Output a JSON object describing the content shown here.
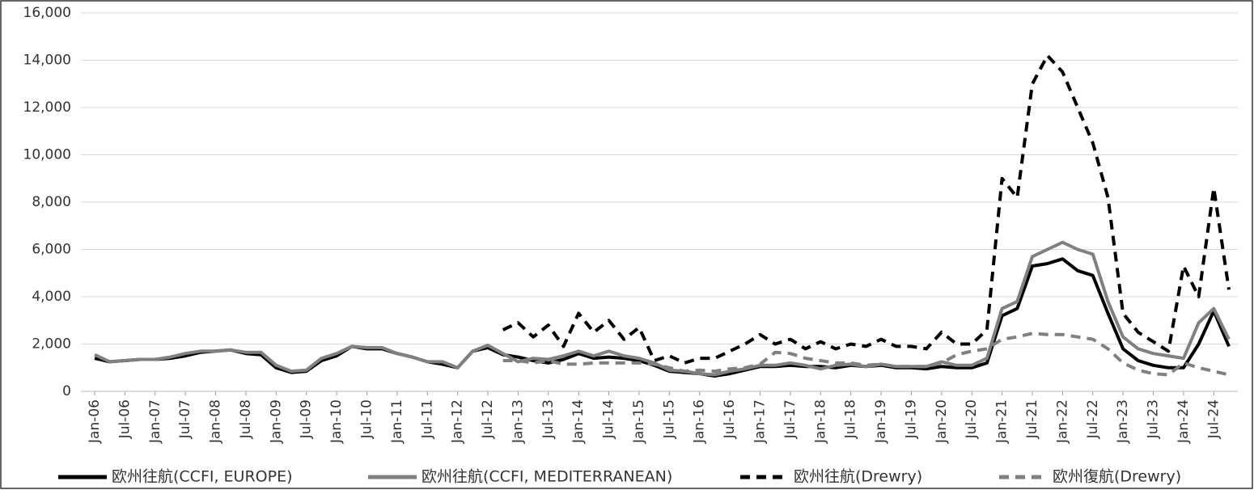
{
  "chart_data": {
    "type": "line",
    "categories": [
      "Jan-06",
      null,
      "Jul-06",
      null,
      "Jan-07",
      null,
      "Jul-07",
      null,
      "Jan-08",
      null,
      "Jul-08",
      null,
      "Jan-09",
      null,
      "Jul-09",
      null,
      "Jan-10",
      null,
      "Jul-10",
      null,
      "Jan-11",
      null,
      "Jul-11",
      null,
      "Jan-12",
      null,
      "Jul-12",
      null,
      "Jan-13",
      null,
      "Jul-13",
      null,
      "Jan-14",
      null,
      "Jul-14",
      null,
      "Jan-15",
      null,
      "Jul-15",
      null,
      "Jan-16",
      null,
      "Jul-16",
      null,
      "Jan-17",
      null,
      "Jul-17",
      null,
      "Jan-18",
      null,
      "Jul-18",
      null,
      "Jan-19",
      null,
      "Jul-19",
      null,
      "Jan-20",
      null,
      "Jul-20",
      null,
      "Jan-21",
      null,
      "Jul-21",
      null,
      "Jan-22",
      null,
      "Jul-22",
      null,
      "Jan-23",
      null,
      "Jul-23",
      null,
      "Jan-24",
      null,
      "Jul-24",
      null
    ],
    "series": [
      {
        "name": "欧州往航(CCFI, EUROPE)",
        "color": "#000000",
        "dashed": false,
        "values": [
          1400,
          1250,
          1300,
          1350,
          1350,
          1400,
          1500,
          1650,
          1700,
          1750,
          1600,
          1550,
          1000,
          800,
          850,
          1300,
          1500,
          1900,
          1800,
          1800,
          1600,
          1450,
          1250,
          1150,
          1000,
          1700,
          1850,
          1550,
          1450,
          1300,
          1200,
          1350,
          1600,
          1400,
          1450,
          1400,
          1300,
          1100,
          850,
          800,
          750,
          650,
          750,
          900,
          1050,
          1050,
          1100,
          1050,
          1050,
          1000,
          1100,
          1050,
          1100,
          1000,
          1000,
          950,
          1050,
          1000,
          1000,
          1200,
          3200,
          3500,
          5300,
          5400,
          5600,
          5100,
          4900,
          3300,
          1800,
          1300,
          1100,
          1000,
          1000,
          2000,
          3400,
          1900
        ]
      },
      {
        "name": "欧州往航(CCFI, MEDITERRANEAN)",
        "color": "#808080",
        "dashed": false,
        "values": [
          1550,
          1250,
          1300,
          1350,
          1350,
          1450,
          1600,
          1700,
          1700,
          1750,
          1650,
          1650,
          1100,
          850,
          900,
          1400,
          1600,
          1900,
          1850,
          1850,
          1600,
          1450,
          1250,
          1250,
          1000,
          1700,
          1950,
          1600,
          1250,
          1400,
          1350,
          1500,
          1700,
          1500,
          1700,
          1500,
          1400,
          1200,
          900,
          850,
          750,
          700,
          850,
          950,
          1100,
          1100,
          1200,
          1100,
          950,
          1100,
          1150,
          1050,
          1150,
          1050,
          1050,
          1050,
          1250,
          1100,
          1100,
          1400,
          3500,
          3800,
          5700,
          6000,
          6300,
          6000,
          5800,
          3800,
          2300,
          1800,
          1600,
          1500,
          1400,
          2900,
          3500,
          2200
        ]
      },
      {
        "name": "欧州往航(Drewry)",
        "color": "#000000",
        "dashed": true,
        "values": [
          null,
          null,
          null,
          null,
          null,
          null,
          null,
          null,
          null,
          null,
          null,
          null,
          null,
          null,
          null,
          null,
          null,
          null,
          null,
          null,
          null,
          null,
          null,
          null,
          null,
          null,
          null,
          2600,
          2900,
          2300,
          2800,
          1900,
          3300,
          2500,
          3000,
          2200,
          2700,
          1300,
          1500,
          1200,
          1400,
          1400,
          1700,
          2000,
          2400,
          2000,
          2200,
          1800,
          2100,
          1800,
          2000,
          1900,
          2200,
          1900,
          1900,
          1800,
          2500,
          2000,
          2000,
          2600,
          9000,
          8200,
          13000,
          14200,
          13500,
          12000,
          10500,
          8200,
          3300,
          2500,
          2100,
          1700,
          5300,
          4000,
          8600,
          4300
        ]
      },
      {
        "name": "欧州復航(Drewry)",
        "color": "#808080",
        "dashed": true,
        "values": [
          null,
          null,
          null,
          null,
          null,
          null,
          null,
          null,
          null,
          null,
          null,
          null,
          null,
          null,
          null,
          null,
          null,
          null,
          null,
          null,
          null,
          null,
          null,
          null,
          null,
          null,
          null,
          1300,
          1300,
          1200,
          1300,
          1150,
          1150,
          1200,
          1200,
          1200,
          1200,
          1150,
          1000,
          850,
          900,
          850,
          950,
          1000,
          1150,
          1650,
          1600,
          1400,
          1300,
          1200,
          1200,
          1100,
          1150,
          1050,
          1050,
          1050,
          1200,
          1550,
          1700,
          1800,
          2200,
          2300,
          2450,
          2400,
          2400,
          2300,
          2200,
          1800,
          1200,
          900,
          750,
          700,
          1200,
          1000,
          850,
          700
        ]
      }
    ],
    "ylim": [
      0,
      16000
    ],
    "yticks": [
      0,
      {
        "value": 2000,
        "label": "2,000"
      },
      {
        "value": 4000,
        "label": "4,000"
      },
      {
        "value": 6000,
        "label": "6,000"
      },
      {
        "value": 8000,
        "label": "8,000"
      },
      {
        "value": 10000,
        "label": "10,000"
      },
      {
        "value": 12000,
        "label": "12,000"
      },
      {
        "value": 14000,
        "label": "14,000"
      },
      {
        "value": 16000,
        "label": "16,000"
      }
    ],
    "grid": true,
    "legend": "bottom"
  }
}
